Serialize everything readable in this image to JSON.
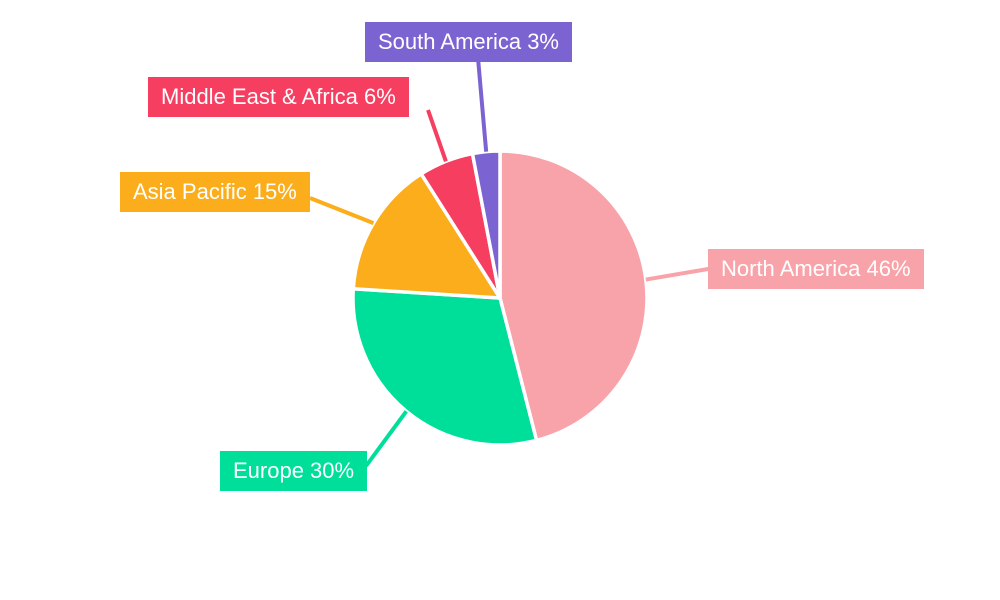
{
  "chart_data": {
    "type": "pie",
    "title": "",
    "start_angle_deg": 0,
    "direction": "clockwise",
    "background_color": "#FFFFFF",
    "label_text_color": "#FFFFFF",
    "gap_stroke_color": "#FFFFFF",
    "slices": [
      {
        "name": "North America",
        "value": 46,
        "color": "#F8A3A9",
        "label_text": "North America 46%"
      },
      {
        "name": "Europe",
        "value": 30,
        "color": "#00DF9A",
        "label_text": "Europe 30%"
      },
      {
        "name": "Asia Pacific",
        "value": 15,
        "color": "#FBAD1B",
        "label_text": "Asia Pacific 15%"
      },
      {
        "name": "Middle East & Africa",
        "value": 6,
        "color": "#F63E61",
        "label_text": "Middle East & Africa 6%"
      },
      {
        "name": "South America",
        "value": 3,
        "color": "#7C63D2",
        "label_text": "South America 3%"
      }
    ]
  }
}
